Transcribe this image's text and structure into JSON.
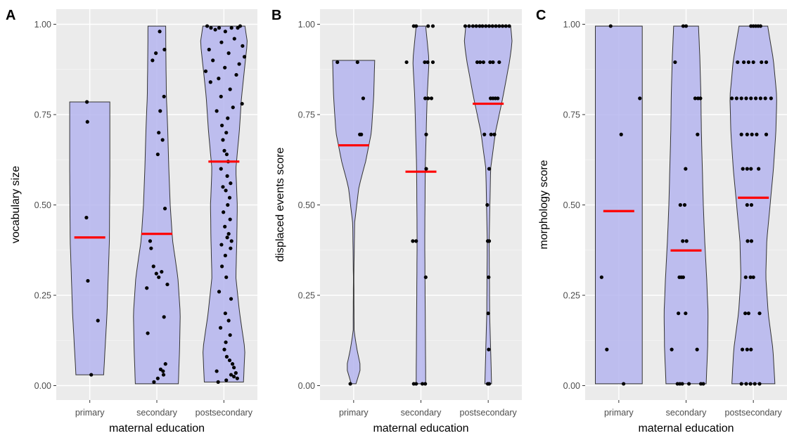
{
  "chart_data": [
    {
      "type": "violin",
      "panel_label": "A",
      "xlabel": "maternal education",
      "ylabel": "vocabulary size",
      "categories": [
        "primary",
        "secondary",
        "postsecondary"
      ],
      "ylim": [
        0,
        1
      ],
      "yticks": [
        0,
        0.25,
        0.5,
        0.75,
        1
      ],
      "ytick_labels": [
        "0.00",
        "0.25",
        "0.50",
        "0.75",
        "1.00"
      ],
      "grid": true,
      "means": [
        0.41,
        0.42,
        0.62
      ],
      "violins": [
        {
          "category": "primary",
          "profile": [
            [
              0.03,
              0.58
            ],
            [
              0.2,
              0.72
            ],
            [
              0.4,
              0.82
            ],
            [
              0.6,
              0.84
            ],
            [
              0.72,
              0.84
            ],
            [
              0.785,
              0.84
            ]
          ]
        },
        {
          "category": "secondary",
          "profile": [
            [
              0.005,
              0.9
            ],
            [
              0.1,
              0.95
            ],
            [
              0.2,
              0.98
            ],
            [
              0.3,
              0.88
            ],
            [
              0.4,
              0.66
            ],
            [
              0.5,
              0.56
            ],
            [
              0.6,
              0.5
            ],
            [
              0.7,
              0.46
            ],
            [
              0.8,
              0.4
            ],
            [
              0.9,
              0.38
            ],
            [
              0.995,
              0.37
            ]
          ]
        },
        {
          "category": "postsecondary",
          "profile": [
            [
              0.01,
              0.82
            ],
            [
              0.1,
              0.88
            ],
            [
              0.2,
              0.66
            ],
            [
              0.3,
              0.5
            ],
            [
              0.4,
              0.54
            ],
            [
              0.5,
              0.56
            ],
            [
              0.6,
              0.5
            ],
            [
              0.7,
              0.64
            ],
            [
              0.8,
              0.74
            ],
            [
              0.9,
              0.9
            ],
            [
              0.95,
              0.98
            ],
            [
              0.995,
              0.88
            ]
          ]
        }
      ],
      "points": [
        {
          "category": "primary",
          "values": [
            0.785,
            0.73,
            0.465,
            0.29,
            0.18,
            0.03
          ],
          "jitter": [
            -0.12,
            -0.1,
            -0.14,
            -0.08,
            0.34,
            0.06
          ]
        },
        {
          "category": "secondary",
          "values": [
            0.98,
            0.93,
            0.92,
            0.9,
            0.8,
            0.76,
            0.7,
            0.68,
            0.64,
            0.49,
            0.4,
            0.38,
            0.33,
            0.315,
            0.31,
            0.3,
            0.28,
            0.27,
            0.19,
            0.145,
            0.06,
            0.045,
            0.04,
            0.03,
            0.02,
            0.01
          ],
          "jitter": [
            0.12,
            0.32,
            -0.04,
            -0.18,
            0.3,
            0.14,
            0.08,
            0.24,
            0.04,
            0.34,
            -0.28,
            -0.24,
            -0.14,
            0.2,
            -0.02,
            0.08,
            0.44,
            -0.42,
            0.3,
            -0.38,
            0.36,
            0.16,
            0.26,
            0.28,
            0.04,
            -0.12
          ]
        },
        {
          "category": "postsecondary",
          "values": [
            0.995,
            0.995,
            0.99,
            0.99,
            0.99,
            0.99,
            0.985,
            0.98,
            0.96,
            0.95,
            0.94,
            0.93,
            0.92,
            0.91,
            0.9,
            0.89,
            0.88,
            0.87,
            0.86,
            0.85,
            0.84,
            0.82,
            0.8,
            0.78,
            0.77,
            0.76,
            0.74,
            0.72,
            0.7,
            0.68,
            0.65,
            0.64,
            0.62,
            0.6,
            0.58,
            0.56,
            0.55,
            0.54,
            0.52,
            0.5,
            0.48,
            0.46,
            0.44,
            0.42,
            0.41,
            0.4,
            0.39,
            0.38,
            0.36,
            0.33,
            0.3,
            0.26,
            0.24,
            0.2,
            0.18,
            0.16,
            0.14,
            0.12,
            0.1,
            0.08,
            0.07,
            0.06,
            0.05,
            0.04,
            0.035,
            0.03,
            0.025,
            0.02,
            0.015,
            0.01
          ],
          "jitter": [
            -0.7,
            0.68,
            -0.54,
            -0.2,
            0.32,
            0.58,
            -0.36,
            0.06,
            0.44,
            -0.1,
            0.78,
            -0.62,
            0.2,
            0.86,
            -0.46,
            0.64,
            0.04,
            -0.76,
            0.52,
            -0.22,
            -0.56,
            0.26,
            -0.12,
            0.76,
            0.38,
            -0.3,
            0.16,
            -0.08,
            0.1,
            -0.04,
            0.02,
            0.12,
            0.18,
            -0.12,
            0.14,
            0.28,
            -0.04,
            0.08,
            0.24,
            0.16,
            -0.02,
            0.26,
            0.04,
            0.2,
            0.14,
            0.32,
            -0.1,
            0.28,
            0.06,
            -0.08,
            0.1,
            -0.2,
            0.3,
            0.06,
            0.2,
            -0.14,
            0.26,
            0.08,
            0.02,
            0.12,
            0.24,
            0.36,
            0.42,
            -0.3,
            0.5,
            0.3,
            0.42,
            0.56,
            0.1,
            -0.24
          ]
        }
      ]
    },
    {
      "type": "violin",
      "panel_label": "B",
      "xlabel": "maternal education",
      "ylabel": "displaced events score",
      "categories": [
        "primary",
        "secondary",
        "postsecondary"
      ],
      "ylim": [
        0,
        1
      ],
      "yticks": [
        0,
        0.25,
        0.5,
        0.75,
        1
      ],
      "ytick_labels": [
        "0.00",
        "0.25",
        "0.50",
        "0.75",
        "1.00"
      ],
      "grid": true,
      "means": [
        0.665,
        0.592,
        0.78
      ],
      "violins": [
        {
          "category": "primary",
          "profile": [
            [
              0.005,
              0.1
            ],
            [
              0.05,
              0.3
            ],
            [
              0.1,
              0.14
            ],
            [
              0.15,
              0.02
            ],
            [
              0.3,
              0.01
            ],
            [
              0.45,
              0.04
            ],
            [
              0.55,
              0.22
            ],
            [
              0.62,
              0.5
            ],
            [
              0.7,
              0.74
            ],
            [
              0.8,
              0.84
            ],
            [
              0.9,
              0.88
            ]
          ]
        },
        {
          "category": "secondary",
          "profile": [
            [
              0.005,
              0.2
            ],
            [
              0.2,
              0.18
            ],
            [
              0.4,
              0.16
            ],
            [
              0.6,
              0.18
            ],
            [
              0.8,
              0.26
            ],
            [
              0.9,
              0.34
            ],
            [
              0.995,
              0.2
            ]
          ]
        },
        {
          "category": "postsecondary",
          "profile": [
            [
              0.005,
              0.14
            ],
            [
              0.2,
              0.06
            ],
            [
              0.4,
              0.04
            ],
            [
              0.6,
              0.1
            ],
            [
              0.7,
              0.3
            ],
            [
              0.8,
              0.62
            ],
            [
              0.9,
              0.9
            ],
            [
              0.95,
              1.0
            ],
            [
              0.995,
              0.94
            ]
          ]
        }
      ],
      "points": [
        {
          "category": "primary",
          "values": [
            0.895,
            0.895,
            0.795,
            0.695,
            0.695,
            0.005
          ],
          "jitter": [
            -0.68,
            0.16,
            0.4,
            0.26,
            0.32,
            -0.14
          ]
        },
        {
          "category": "secondary",
          "values": [
            0.995,
            0.995,
            0.995,
            0.995,
            0.895,
            0.895,
            0.895,
            0.895,
            0.795,
            0.795,
            0.795,
            0.695,
            0.6,
            0.4,
            0.4,
            0.3,
            0.005,
            0.005,
            0.005,
            0.005
          ],
          "jitter": [
            -0.3,
            -0.2,
            0.3,
            0.5,
            -0.6,
            0.16,
            0.28,
            0.5,
            0.18,
            0.3,
            0.44,
            0.22,
            0.22,
            -0.34,
            -0.2,
            0.2,
            -0.3,
            -0.2,
            0.06,
            0.18
          ]
        },
        {
          "category": "postsecondary",
          "values": [
            0.995,
            0.995,
            0.995,
            0.995,
            0.995,
            0.995,
            0.995,
            0.995,
            0.995,
            0.995,
            0.995,
            0.995,
            0.995,
            0.995,
            0.895,
            0.895,
            0.895,
            0.895,
            0.895,
            0.895,
            0.795,
            0.795,
            0.795,
            0.795,
            0.695,
            0.695,
            0.695,
            0.6,
            0.5,
            0.4,
            0.4,
            0.3,
            0.2,
            0.1,
            0.005,
            0.005
          ],
          "jitter": [
            -0.96,
            -0.8,
            -0.64,
            -0.5,
            -0.36,
            -0.24,
            -0.1,
            0.04,
            0.18,
            0.32,
            0.46,
            0.6,
            0.74,
            0.88,
            -0.46,
            -0.34,
            -0.2,
            0.08,
            0.2,
            0.46,
            0.1,
            0.2,
            0.3,
            0.4,
            -0.16,
            0.12,
            0.26,
            0.04,
            -0.04,
            -0.02,
            0.04,
            0.02,
            0.0,
            0.02,
            -0.02,
            0.04
          ]
        }
      ]
    },
    {
      "type": "violin",
      "panel_label": "C",
      "xlabel": "maternal education",
      "ylabel": "morphology score",
      "categories": [
        "primary",
        "secondary",
        "postsecondary"
      ],
      "ylim": [
        0,
        1
      ],
      "yticks": [
        0,
        0.25,
        0.5,
        0.75,
        1
      ],
      "ytick_labels": [
        "0.00",
        "0.25",
        "0.50",
        "0.75",
        "1.00"
      ],
      "grid": true,
      "means": [
        0.483,
        0.374,
        0.52
      ],
      "violins": [
        {
          "category": "primary",
          "profile": [
            [
              0.005,
              0.98
            ],
            [
              0.3,
              0.98
            ],
            [
              0.6,
              0.98
            ],
            [
              0.995,
              0.98
            ]
          ]
        },
        {
          "category": "secondary",
          "profile": [
            [
              0.005,
              0.84
            ],
            [
              0.1,
              0.9
            ],
            [
              0.2,
              0.92
            ],
            [
              0.3,
              0.86
            ],
            [
              0.4,
              0.78
            ],
            [
              0.5,
              0.72
            ],
            [
              0.6,
              0.68
            ],
            [
              0.7,
              0.64
            ],
            [
              0.8,
              0.62
            ],
            [
              0.9,
              0.58
            ],
            [
              0.995,
              0.52
            ]
          ]
        },
        {
          "category": "postsecondary",
          "profile": [
            [
              0.005,
              0.9
            ],
            [
              0.1,
              0.82
            ],
            [
              0.2,
              0.62
            ],
            [
              0.3,
              0.52
            ],
            [
              0.4,
              0.56
            ],
            [
              0.5,
              0.7
            ],
            [
              0.6,
              0.84
            ],
            [
              0.7,
              0.94
            ],
            [
              0.8,
              0.98
            ],
            [
              0.9,
              0.84
            ],
            [
              0.995,
              0.6
            ]
          ]
        }
      ],
      "points": [
        {
          "category": "primary",
          "values": [
            0.995,
            0.795,
            0.695,
            0.3,
            0.1,
            0.005
          ],
          "jitter": [
            -0.34,
            0.88,
            0.1,
            -0.72,
            -0.5,
            0.2
          ]
        },
        {
          "category": "secondary",
          "values": [
            0.995,
            0.995,
            0.895,
            0.795,
            0.795,
            0.795,
            0.695,
            0.6,
            0.5,
            0.5,
            0.4,
            0.4,
            0.3,
            0.3,
            0.3,
            0.2,
            0.2,
            0.1,
            0.1,
            0.005,
            0.005,
            0.005,
            0.005,
            0.005,
            0.005
          ],
          "jitter": [
            -0.12,
            0.0,
            -0.46,
            0.38,
            0.5,
            0.6,
            0.48,
            -0.02,
            -0.24,
            -0.06,
            -0.14,
            0.02,
            -0.28,
            -0.2,
            -0.12,
            -0.32,
            -0.02,
            -0.6,
            0.46,
            -0.36,
            -0.26,
            -0.16,
            0.12,
            0.62,
            0.72
          ]
        },
        {
          "category": "postsecondary",
          "values": [
            0.995,
            0.995,
            0.995,
            0.995,
            0.995,
            0.895,
            0.895,
            0.895,
            0.895,
            0.895,
            0.895,
            0.795,
            0.795,
            0.795,
            0.795,
            0.795,
            0.795,
            0.795,
            0.795,
            0.795,
            0.695,
            0.695,
            0.695,
            0.695,
            0.695,
            0.6,
            0.6,
            0.6,
            0.6,
            0.5,
            0.5,
            0.4,
            0.4,
            0.3,
            0.3,
            0.3,
            0.2,
            0.2,
            0.2,
            0.1,
            0.1,
            0.1,
            0.005,
            0.005,
            0.005,
            0.005,
            0.005
          ],
          "jitter": [
            -0.1,
            0.0,
            0.1,
            0.2,
            0.3,
            -0.66,
            -0.4,
            -0.2,
            0.0,
            0.34,
            0.54,
            -0.9,
            -0.7,
            -0.5,
            -0.3,
            -0.1,
            0.1,
            0.3,
            0.5,
            0.74,
            -0.5,
            -0.26,
            -0.06,
            0.14,
            0.54,
            -0.44,
            -0.26,
            -0.1,
            0.22,
            -0.26,
            -0.08,
            -0.24,
            -0.08,
            -0.32,
            -0.12,
            0.0,
            -0.34,
            -0.2,
            0.26,
            -0.46,
            -0.26,
            -0.1,
            -0.5,
            -0.3,
            -0.12,
            0.06,
            0.26
          ]
        }
      ]
    }
  ],
  "colors": {
    "panel_background": "#ebebeb",
    "grid_major": "#ffffff",
    "grid_minor": "#f5f5f5",
    "violin_fill": "#b2b2ee",
    "violin_stroke": "#333333",
    "point": "#000000",
    "mean_bar": "#ff0000"
  }
}
